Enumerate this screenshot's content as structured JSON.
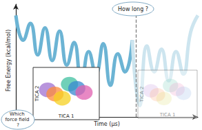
{
  "chart_data": {
    "type": "line",
    "x_label": "Time (µs)",
    "y_label": "Free Energy (kcal/mol)",
    "x": [
      0,
      4,
      8,
      12,
      16,
      20,
      24,
      28,
      32,
      36,
      40,
      44,
      48,
      52,
      56,
      60,
      64,
      68,
      72,
      76,
      80,
      84,
      88,
      92,
      96,
      100
    ],
    "series": [
      {
        "color": "#6cb4d4",
        "values": [
          9.0,
          6.8,
          8.3,
          5.5,
          7.9,
          5.0,
          7.6,
          4.6,
          6.6,
          3.0,
          5.8,
          3.8,
          6.5,
          2.8,
          5.6,
          4.0,
          6.8,
          null,
          null,
          null,
          null,
          null,
          null,
          null,
          null,
          null
        ]
      },
      {
        "color": "#cde5ef",
        "values": [
          null,
          null,
          null,
          null,
          null,
          null,
          null,
          null,
          null,
          null,
          null,
          null,
          null,
          null,
          null,
          null,
          6.8,
          1.0,
          6.3,
          4.0,
          6.0,
          3.2,
          5.8,
          3.8,
          7.5,
          9.0
        ]
      }
    ],
    "xlim": [
      0,
      100
    ],
    "ylim": [
      0,
      10
    ],
    "vertical_line_x": 66,
    "tick_labels": false,
    "grid": false,
    "annotations": [
      "How long ?",
      "Which force field ?"
    ],
    "insets": [
      {
        "x_label": "TICA 1",
        "y_label": "TICA 2"
      },
      {
        "x_label": "TICA 1",
        "y_label": "TICA 2"
      }
    ]
  }
}
